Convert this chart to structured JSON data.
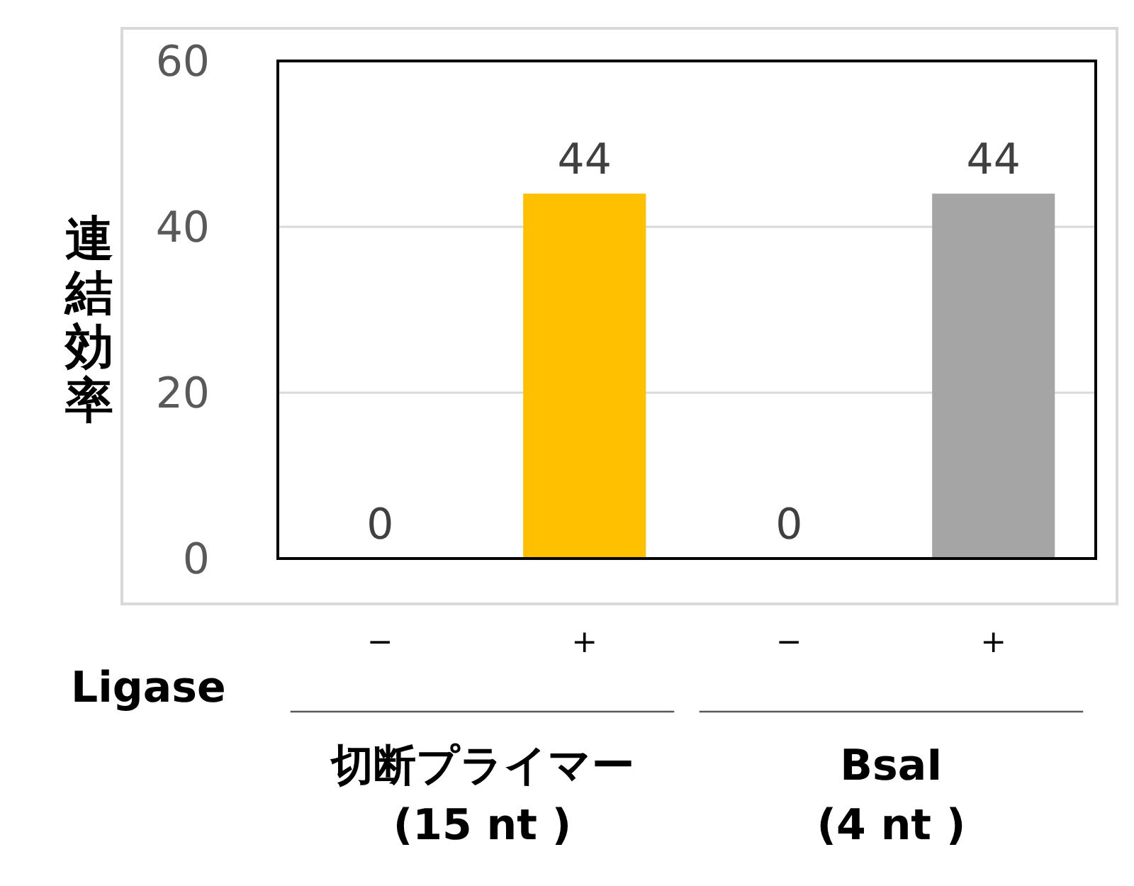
{
  "chart_data": {
    "type": "bar",
    "ylabel": "連結効率",
    "categories": [
      "−",
      "+",
      "−",
      "+"
    ],
    "values": [
      0,
      44,
      0,
      44
    ],
    "colors": [
      "#ffc000",
      "#ffc000",
      "#a5a5a5",
      "#a5a5a5"
    ],
    "ylim": [
      0,
      60
    ],
    "yticks": [
      0,
      20,
      40,
      60
    ],
    "grid": "y",
    "data_labels": true,
    "annotations": [
      "Ligase",
      "切断プライマー\n(15 nt )",
      "BsaI\n(4 nt )"
    ]
  }
}
